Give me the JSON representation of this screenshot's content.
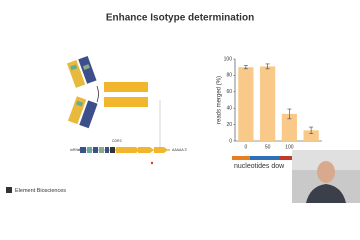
{
  "slide_title": "Enhance Isotype determination",
  "diagram": {
    "mrna": "mRNA",
    "cdr3": "CDR3",
    "polya": "AAAAA 3'"
  },
  "footer": "Element Biosciences",
  "chart_data": {
    "type": "bar",
    "ylabel": "reads merged (%)",
    "xlabel": "nucleotides dow",
    "categories": [
      "0",
      "50",
      "100",
      null
    ],
    "values": [
      90,
      91,
      33,
      13
    ],
    "errors": [
      2,
      3,
      6,
      4
    ],
    "color": "#f9c98a",
    "error_color": "#444",
    "ylim": [
      0,
      100
    ],
    "yticks": [
      0,
      20,
      40,
      60,
      80,
      100
    ]
  }
}
